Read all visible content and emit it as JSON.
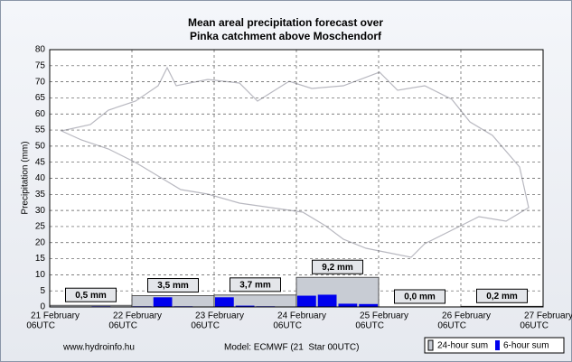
{
  "chart_data": {
    "type": "bar",
    "title": [
      "Mean areal precipitation forecast over",
      "Pinka catchment above Moschendorf"
    ],
    "y_label": "Precipitation (mm)",
    "xticks": [
      [
        "21 February",
        "06UTC"
      ],
      [
        "22 February",
        "06UTC"
      ],
      [
        "23 February",
        "06UTC"
      ],
      [
        "24 February",
        "06UTC"
      ],
      [
        "25 February",
        "06UTC"
      ],
      [
        "26 February",
        "06UTC"
      ],
      [
        "27 February",
        "06UTC"
      ]
    ],
    "ylim": [
      0,
      80
    ],
    "yticks": [
      0,
      5,
      10,
      15,
      20,
      25,
      30,
      35,
      40,
      45,
      50,
      55,
      60,
      65,
      70,
      75,
      80
    ],
    "grid": true,
    "series": [
      {
        "name": "24-hour sum",
        "color": "#c8ccd4",
        "values": [
          0.5,
          3.5,
          3.7,
          9.2,
          0.0,
          0.2
        ],
        "value_labels": [
          "0,5 mm",
          "3,5 mm",
          "3,7 mm",
          "9,2 mm",
          "0,0 mm",
          "0,2 mm"
        ]
      },
      {
        "name": "6-hour sum",
        "color": "#0000ee",
        "values": [
          0.1,
          0.1,
          0.2,
          0.1,
          0.2,
          3.0,
          0.2,
          0.1,
          3.0,
          0.4,
          0.2,
          0.1,
          3.5,
          3.8,
          1.0,
          0.9,
          0,
          0,
          0,
          0,
          0,
          0.1,
          0.1,
          0
        ]
      }
    ],
    "footer": {
      "source": "www.hydroinfo.hu",
      "model": "Model: ECMWF (21  Star 00UTC)"
    }
  }
}
